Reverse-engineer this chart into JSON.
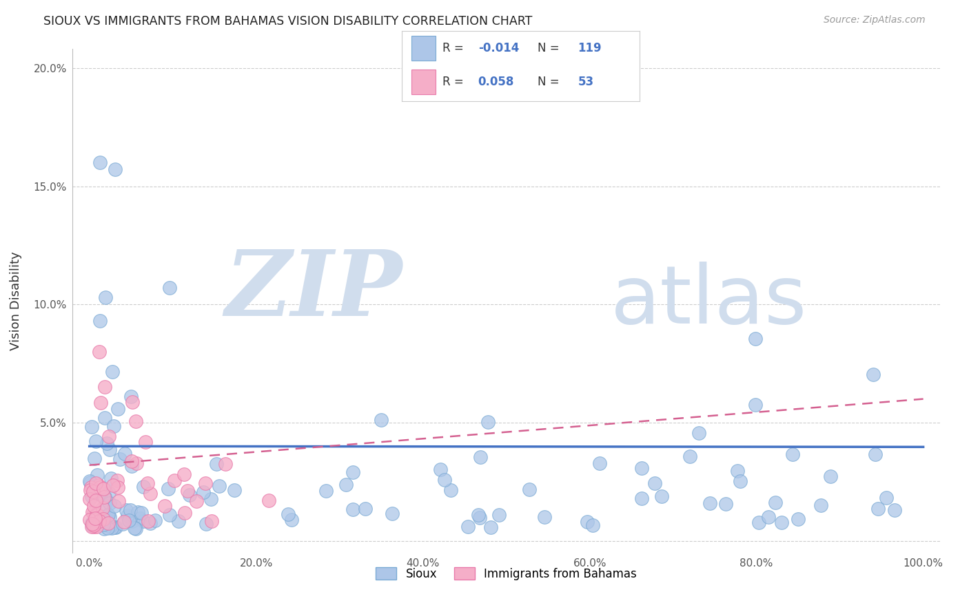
{
  "title": "SIOUX VS IMMIGRANTS FROM BAHAMAS VISION DISABILITY CORRELATION CHART",
  "source": "Source: ZipAtlas.com",
  "ylabel": "Vision Disability",
  "xlim": [
    -0.02,
    1.02
  ],
  "ylim": [
    -0.005,
    0.208
  ],
  "xticks": [
    0.0,
    0.2,
    0.4,
    0.6,
    0.8,
    1.0
  ],
  "xtick_labels": [
    "0.0%",
    "20.0%",
    "40.0%",
    "60.0%",
    "80.0%",
    "100.0%"
  ],
  "yticks": [
    0.0,
    0.05,
    0.1,
    0.15,
    0.2
  ],
  "ytick_labels": [
    "",
    "5.0%",
    "10.0%",
    "15.0%",
    "20.0%"
  ],
  "sioux_color": "#adc6e8",
  "sioux_edge_color": "#7aaad4",
  "bahamas_color": "#f5aec8",
  "bahamas_edge_color": "#e87aaa",
  "sioux_R": -0.014,
  "sioux_N": 119,
  "bahamas_R": 0.058,
  "bahamas_N": 53,
  "trend_sioux_color": "#4472c4",
  "trend_bahamas_color": "#d46090",
  "watermark_ZIP": "ZIP",
  "watermark_atlas": "atlas",
  "watermark_color": "#d0dded",
  "background_color": "#ffffff",
  "grid_color": "#cccccc",
  "legend_R_color": "#4472c4",
  "legend_text_color": "#333333"
}
